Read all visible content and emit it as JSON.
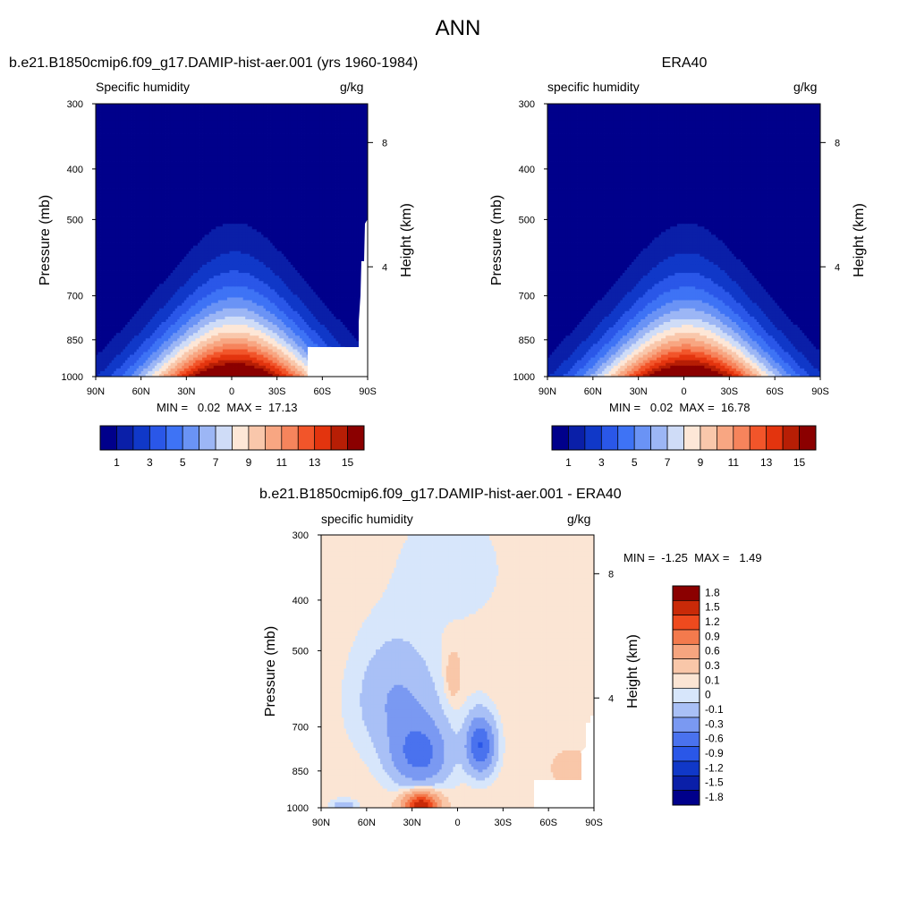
{
  "figure_title": "ANN",
  "panels": [
    {
      "id": "model",
      "title": "b.e21.B1850cmip6.f09_g17.DAMIP-hist-aer.001 (yrs 1960-1984)",
      "left_label": "Specific humidity",
      "right_label": "g/kg",
      "stats": "MIN =   0.02  MAX =  17.13"
    },
    {
      "id": "obs",
      "title": "ERA40",
      "left_label": "specific humidity",
      "right_label": "g/kg",
      "stats": "MIN =   0.02  MAX =  16.78"
    },
    {
      "id": "diff",
      "title": "b.e21.B1850cmip6.f09_g17.DAMIP-hist-aer.001 - ERA40",
      "left_label": "specific humidity",
      "right_label": "g/kg",
      "stats": "MIN =  -1.25  MAX =   1.49"
    }
  ],
  "chart_data": [
    {
      "type": "heatmap",
      "title": "b.e21.B1850cmip6.f09_g17.DAMIP-hist-aer.001 (yrs 1960-1984)",
      "xlabel": "",
      "ylabel": "Pressure (mb)",
      "y2label": "Height (km)",
      "x_ticks": [
        "90N",
        "60N",
        "30N",
        "0",
        "30S",
        "60S",
        "90S"
      ],
      "y_ticks": [
        "300",
        "400",
        "500",
        "700",
        "850",
        "1000"
      ],
      "y2_ticks": [
        "8",
        "4"
      ],
      "units": "g/kg",
      "min": 0.02,
      "max": 17.13,
      "peak_lat": 0,
      "peak_value": 17.13,
      "colorbar_labels": [
        "1",
        "3",
        "5",
        "7",
        "9",
        "11",
        "13",
        "15"
      ],
      "levels": [
        1,
        2,
        3,
        4,
        5,
        6,
        7,
        8,
        9,
        10,
        11,
        12,
        13,
        14,
        15
      ]
    },
    {
      "type": "heatmap",
      "title": "ERA40",
      "xlabel": "",
      "ylabel": "Pressure (mb)",
      "y2label": "Height (km)",
      "x_ticks": [
        "90N",
        "60N",
        "30N",
        "0",
        "30S",
        "60S",
        "90S"
      ],
      "y_ticks": [
        "300",
        "400",
        "500",
        "700",
        "850",
        "1000"
      ],
      "y2_ticks": [
        "8",
        "4"
      ],
      "units": "g/kg",
      "min": 0.02,
      "max": 16.78,
      "peak_lat": 0,
      "peak_value": 16.78,
      "colorbar_labels": [
        "1",
        "3",
        "5",
        "7",
        "9",
        "11",
        "13",
        "15"
      ],
      "levels": [
        1,
        2,
        3,
        4,
        5,
        6,
        7,
        8,
        9,
        10,
        11,
        12,
        13,
        14,
        15
      ]
    },
    {
      "type": "heatmap",
      "title": "b.e21.B1850cmip6.f09_g17.DAMIP-hist-aer.001 - ERA40",
      "xlabel": "",
      "ylabel": "Pressure (mb)",
      "y2label": "Height (km)",
      "x_ticks": [
        "90N",
        "60N",
        "30N",
        "0",
        "30S",
        "60S",
        "90S"
      ],
      "y_ticks": [
        "300",
        "400",
        "500",
        "700",
        "850",
        "1000"
      ],
      "y2_ticks": [
        "8",
        "4"
      ],
      "units": "g/kg",
      "min": -1.25,
      "max": 1.49,
      "colorbar_labels": [
        "1.8",
        "1.5",
        "1.2",
        "0.9",
        "0.6",
        "0.3",
        "0.1",
        "0",
        "-0.1",
        "-0.3",
        "-0.6",
        "-0.9",
        "-1.2",
        "-1.5",
        "-1.8"
      ],
      "levels": [
        -1.8,
        -1.5,
        -1.2,
        -0.9,
        -0.6,
        -0.3,
        -0.1,
        0,
        0.1,
        0.3,
        0.6,
        0.9,
        1.2,
        1.5,
        1.8
      ]
    }
  ],
  "colors": {
    "seq": [
      "#00008b",
      "#0a1fa8",
      "#1038c8",
      "#2a57e8",
      "#3e73f5",
      "#6a93f5",
      "#9cb6f5",
      "#cfdcf7",
      "#fde7d7",
      "#f9c7ab",
      "#f8a682",
      "#f6845c",
      "#f2552a",
      "#e3340e",
      "#b71e05",
      "#8b0000"
    ],
    "div": [
      "#00008b",
      "#0a1fa8",
      "#1038c8",
      "#2a57e8",
      "#4a72ee",
      "#7a99f2",
      "#a9c0f6",
      "#d7e6fb",
      "#fbe5d4",
      "#f9c7a9",
      "#f6a57f",
      "#f37a4d",
      "#ee4a1e",
      "#c92a08",
      "#8b0000"
    ]
  }
}
